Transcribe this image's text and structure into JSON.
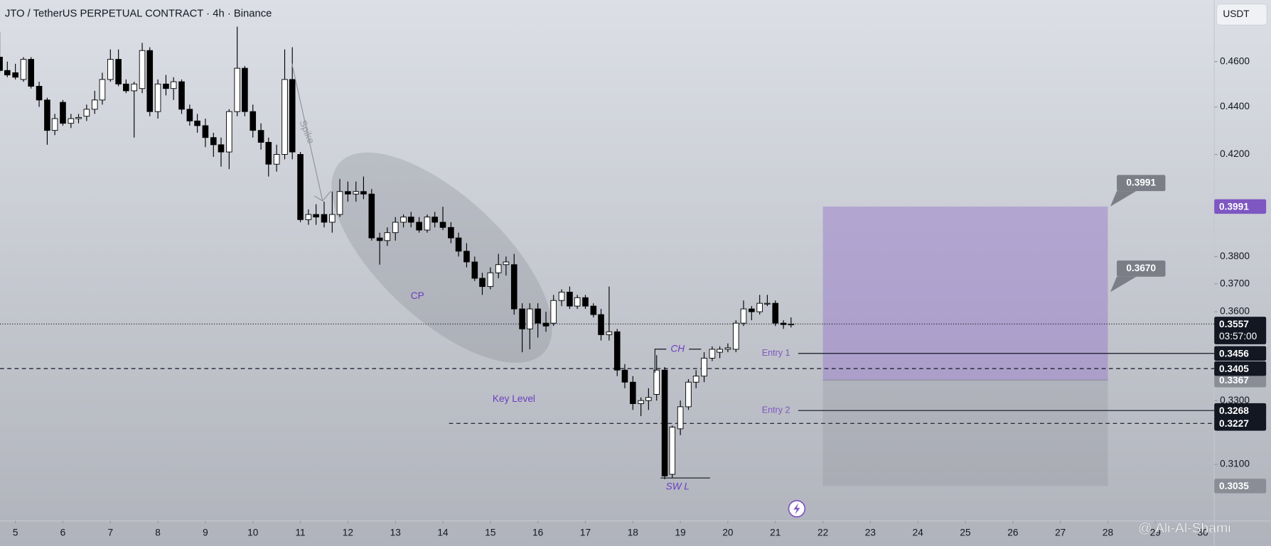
{
  "chart_data": {
    "type": "candlestick",
    "title": "JTO / TetherUS PERPETUAL CONTRACT · 4h · Binance",
    "currency": "USDT",
    "countdown": "03:57:00",
    "watermark": "@ Ali-Al-Shami",
    "log_scale": true,
    "grid": false,
    "up_color": "#ffffff",
    "down_color": "#000000",
    "wick_color": "#000000",
    "x": [
      4.67,
      4.83,
      5,
      5.17,
      5.33,
      5.5,
      5.67,
      5.83,
      6,
      6.17,
      6.33,
      6.5,
      6.67,
      6.83,
      7,
      7.17,
      7.33,
      7.5,
      7.67,
      7.83,
      8,
      8.17,
      8.33,
      8.5,
      8.67,
      8.83,
      9,
      9.17,
      9.33,
      9.5,
      9.67,
      9.83,
      10,
      10.17,
      10.33,
      10.5,
      10.67,
      10.83,
      11,
      11.17,
      11.33,
      11.5,
      11.67,
      11.83,
      12,
      12.17,
      12.33,
      12.5,
      12.67,
      12.83,
      13,
      13.17,
      13.33,
      13.5,
      13.67,
      13.83,
      14,
      14.17,
      14.33,
      14.5,
      14.67,
      14.83,
      15,
      15.17,
      15.33,
      15.5,
      15.67,
      15.83,
      16,
      16.17,
      16.33,
      16.5,
      16.67,
      16.83,
      17,
      17.17,
      17.33,
      17.5,
      17.67,
      17.83,
      18,
      18.17,
      18.33,
      18.5,
      18.67,
      18.83,
      19,
      19.17,
      19.33,
      19.5,
      19.67,
      19.83,
      20,
      20.17,
      20.33,
      20.5,
      20.67,
      20.83,
      21,
      21.17,
      21.33
    ],
    "open": [
      0.462,
      0.456,
      0.455,
      0.452,
      0.461,
      0.449,
      0.443,
      0.43,
      0.442,
      0.433,
      0.435,
      0.436,
      0.439,
      0.443,
      0.452,
      0.461,
      0.45,
      0.447,
      0.448,
      0.465,
      0.438,
      0.45,
      0.448,
      0.451,
      0.439,
      0.434,
      0.432,
      0.427,
      0.424,
      0.421,
      0.438,
      0.457,
      0.438,
      0.43,
      0.425,
      0.416,
      0.42,
      0.452,
      0.42,
      0.394,
      0.396,
      0.396,
      0.393,
      0.396,
      0.405,
      0.404,
      0.405,
      0.404,
      0.387,
      0.386,
      0.389,
      0.393,
      0.395,
      0.393,
      0.39,
      0.395,
      0.393,
      0.391,
      0.387,
      0.382,
      0.378,
      0.372,
      0.369,
      0.374,
      0.377,
      0.377,
      0.361,
      0.354,
      0.361,
      0.356,
      0.356,
      0.364,
      0.367,
      0.362,
      0.365,
      0.362,
      0.359,
      0.352,
      0.353,
      0.34,
      0.336,
      0.329,
      0.33,
      0.332,
      0.34,
      0.307,
      0.321,
      0.328,
      0.336,
      0.338,
      0.344,
      0.346,
      0.347,
      0.347,
      0.356,
      0.361,
      0.36,
      0.363,
      0.363,
      0.356,
      0.3555
    ],
    "high": [
      0.4735,
      0.46,
      0.459,
      0.462,
      0.462,
      0.451,
      0.444,
      0.437,
      0.443,
      0.437,
      0.437,
      0.441,
      0.447,
      0.455,
      0.4655,
      0.4655,
      0.452,
      0.451,
      0.4685,
      0.4665,
      0.452,
      0.454,
      0.453,
      0.452,
      0.441,
      0.437,
      0.435,
      0.429,
      0.427,
      0.439,
      0.476,
      0.458,
      0.441,
      0.433,
      0.427,
      0.424,
      0.4655,
      0.4665,
      0.421,
      0.398,
      0.4,
      0.401,
      0.405,
      0.41,
      0.409,
      0.409,
      0.411,
      0.406,
      0.389,
      0.391,
      0.395,
      0.396,
      0.397,
      0.395,
      0.396,
      0.397,
      0.399,
      0.393,
      0.389,
      0.385,
      0.38,
      0.374,
      0.376,
      0.381,
      0.38,
      0.381,
      0.363,
      0.363,
      0.363,
      0.36,
      0.366,
      0.368,
      0.369,
      0.366,
      0.366,
      0.363,
      0.361,
      0.369,
      0.354,
      0.342,
      0.338,
      0.331,
      0.334,
      0.345,
      0.341,
      0.322,
      0.33,
      0.337,
      0.34,
      0.346,
      0.348,
      0.348,
      0.349,
      0.357,
      0.364,
      0.362,
      0.366,
      0.366,
      0.364,
      0.357,
      0.358
    ],
    "low": [
      0.455,
      0.453,
      0.452,
      0.451,
      0.448,
      0.44,
      0.424,
      0.428,
      0.432,
      0.431,
      0.433,
      0.434,
      0.437,
      0.441,
      0.451,
      0.449,
      0.446,
      0.427,
      0.446,
      0.436,
      0.435,
      0.445,
      0.443,
      0.437,
      0.432,
      0.429,
      0.423,
      0.419,
      0.415,
      0.414,
      0.436,
      0.436,
      0.427,
      0.422,
      0.411,
      0.413,
      0.418,
      0.418,
      0.393,
      0.392,
      0.392,
      0.391,
      0.389,
      0.395,
      0.401,
      0.401,
      0.402,
      0.386,
      0.377,
      0.384,
      0.386,
      0.391,
      0.391,
      0.389,
      0.389,
      0.391,
      0.39,
      0.385,
      0.38,
      0.376,
      0.371,
      0.366,
      0.368,
      0.372,
      0.373,
      0.359,
      0.346,
      0.347,
      0.351,
      0.353,
      0.355,
      0.362,
      0.361,
      0.361,
      0.361,
      0.358,
      0.35,
      0.35,
      0.338,
      0.334,
      0.327,
      0.325,
      0.327,
      0.33,
      0.3055,
      0.306,
      0.319,
      0.327,
      0.334,
      0.336,
      0.343,
      0.344,
      0.346,
      0.346,
      0.355,
      0.357,
      0.359,
      0.362,
      0.355,
      0.354,
      0.3545
    ],
    "close": [
      0.456,
      0.454,
      0.453,
      0.461,
      0.449,
      0.443,
      0.43,
      0.435,
      0.433,
      0.435,
      0.4355,
      0.439,
      0.443,
      0.452,
      0.461,
      0.45,
      0.447,
      0.45,
      0.465,
      0.438,
      0.45,
      0.448,
      0.451,
      0.439,
      0.434,
      0.432,
      0.427,
      0.424,
      0.421,
      0.438,
      0.457,
      0.438,
      0.43,
      0.425,
      0.416,
      0.42,
      0.452,
      0.421,
      0.394,
      0.396,
      0.395,
      0.393,
      0.396,
      0.405,
      0.404,
      0.405,
      0.404,
      0.387,
      0.386,
      0.389,
      0.393,
      0.395,
      0.393,
      0.39,
      0.395,
      0.393,
      0.391,
      0.387,
      0.382,
      0.378,
      0.372,
      0.369,
      0.374,
      0.377,
      0.378,
      0.361,
      0.354,
      0.361,
      0.356,
      0.355,
      0.364,
      0.367,
      0.362,
      0.365,
      0.362,
      0.359,
      0.352,
      0.353,
      0.34,
      0.336,
      0.329,
      0.33,
      0.331,
      0.34,
      0.3065,
      0.3215,
      0.328,
      0.336,
      0.338,
      0.344,
      0.347,
      0.347,
      0.3475,
      0.356,
      0.361,
      0.36,
      0.363,
      0.363,
      0.356,
      0.3555,
      0.3557
    ],
    "xlim": [
      4.676,
      30.24
    ],
    "xticks": [
      5,
      6,
      7,
      8,
      9,
      10,
      11,
      12,
      13,
      14,
      15,
      16,
      17,
      18,
      19,
      20,
      21,
      22,
      23,
      24,
      25,
      26,
      27,
      28,
      29,
      30
    ],
    "ylim": [
      0.2933,
      0.4886
    ],
    "yticks": [
      {
        "value": 0.46,
        "label": "0.4600"
      },
      {
        "value": 0.44,
        "label": "0.4400"
      },
      {
        "value": 0.42,
        "label": "0.4200"
      },
      {
        "value": 0.38,
        "label": "0.3800"
      },
      {
        "value": 0.37,
        "label": "0.3700"
      },
      {
        "value": 0.36,
        "label": "0.3600"
      },
      {
        "value": 0.33,
        "label": "0.3300"
      },
      {
        "value": 0.31,
        "label": "0.3100"
      }
    ],
    "position": {
      "from": 22,
      "to": 28,
      "target": 0.3991,
      "entry": 0.3367,
      "stop": 0.3035,
      "profit_color": "#9575cd",
      "loss_color": "#787b86"
    },
    "callouts": [
      0.3991,
      {
        "value": 0.367,
        "label": "0.3670"
      }
    ],
    "lines": [
      {
        "price": 0.3456,
        "style": "solid",
        "label": "Entry 1",
        "from": 21.48
      },
      {
        "price": 0.3405,
        "style": "dashed"
      },
      {
        "price": 0.3268,
        "style": "solid",
        "label": "Entry 2",
        "from": 21.48
      },
      {
        "price": 0.3227,
        "style": "dashed",
        "from": 14.13
      }
    ],
    "annotations": {
      "spike": "Spike",
      "cp": "CP",
      "key_level": "Key Level",
      "ch": "CH",
      "sw_low": "SW L"
    }
  }
}
